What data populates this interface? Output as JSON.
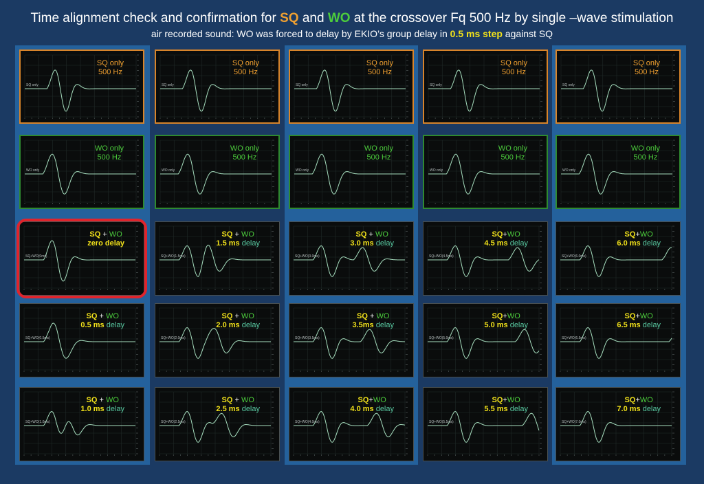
{
  "title": {
    "t1": "Time alignment check and confirmation for ",
    "sq": "SQ",
    "t2": " and ",
    "wo": "WO",
    "t3": " at the crossover Fq 500 Hz by single –wave stimulation"
  },
  "subtitle": {
    "t1": "air recorded sound: WO was forced to delay by EKIO’s group delay in ",
    "step": "0.5 ms step",
    "t2": " against SQ"
  },
  "colors": {
    "sq": "#f0a030",
    "wo": "#4ccc3c",
    "highlight": "#e0242c",
    "waveform": "#a8e0c0"
  },
  "chart_data": {
    "type": "line",
    "crossover_hz": 500,
    "delay_step_ms": 0.5,
    "panels": [
      {
        "kind": "sq",
        "col": 0,
        "row": 0,
        "l1": "SQ only",
        "l2": "500 Hz",
        "trace": "SQ only",
        "delay_ms": 0
      },
      {
        "kind": "sq",
        "col": 1,
        "row": 0,
        "l1": "SQ only",
        "l2": "500 Hz",
        "trace": "SQ only",
        "delay_ms": 0
      },
      {
        "kind": "sq",
        "col": 2,
        "row": 0,
        "l1": "SQ only",
        "l2": "500 Hz",
        "trace": "SQ only",
        "delay_ms": 0
      },
      {
        "kind": "sq",
        "col": 3,
        "row": 0,
        "l1": "SQ only",
        "l2": "500 Hz",
        "trace": "SQ only",
        "delay_ms": 0
      },
      {
        "kind": "sq",
        "col": 4,
        "row": 0,
        "l1": "SQ only",
        "l2": "500 Hz",
        "trace": "SQ only",
        "delay_ms": 0
      },
      {
        "kind": "wo",
        "col": 0,
        "row": 1,
        "l1": "WO only",
        "l2": "500 Hz",
        "trace": "WO only",
        "delay_ms": 0
      },
      {
        "kind": "wo",
        "col": 1,
        "row": 1,
        "l1": "WO only",
        "l2": "500 Hz",
        "trace": "WO only",
        "delay_ms": 0
      },
      {
        "kind": "wo",
        "col": 2,
        "row": 1,
        "l1": "WO only",
        "l2": "500 Hz",
        "trace": "WO only",
        "delay_ms": 0
      },
      {
        "kind": "wo",
        "col": 3,
        "row": 1,
        "l1": "WO only",
        "l2": "500 Hz",
        "trace": "WO only",
        "delay_ms": 0
      },
      {
        "kind": "wo",
        "col": 4,
        "row": 1,
        "l1": "WO only",
        "l2": "500 Hz",
        "trace": "WO only",
        "delay_ms": 0
      },
      {
        "kind": "sum",
        "col": 0,
        "row": 2,
        "sq": "SQ",
        "plus": " + ",
        "wo": "WO",
        "num": "zero delay",
        "word": "",
        "trace": "SQ+WO(0ms)",
        "delay_ms": 0,
        "highlight": true
      },
      {
        "kind": "sum",
        "col": 1,
        "row": 2,
        "sq": "SQ",
        "plus": " + ",
        "wo": "WO",
        "num": "1.5 ms",
        "word": " delay",
        "trace": "SQ+WO(1.5ms)",
        "delay_ms": 1.5
      },
      {
        "kind": "sum",
        "col": 2,
        "row": 2,
        "sq": "SQ",
        "plus": " + ",
        "wo": "WO",
        "num": "3.0 ms",
        "word": " delay",
        "trace": "SQ+WO(3.0ms)",
        "delay_ms": 3.0
      },
      {
        "kind": "sum",
        "col": 3,
        "row": 2,
        "sq": "SQ",
        "plus": "+",
        "wo": "WO",
        "num": "4.5 ms",
        "word": " delay",
        "trace": "SQ+WO(4.5ms)",
        "delay_ms": 4.5
      },
      {
        "kind": "sum",
        "col": 4,
        "row": 2,
        "sq": "SQ",
        "plus": "+",
        "wo": "WO",
        "num": "6.0 ms",
        "word": " delay",
        "trace": "SQ+WO(6.0ms)",
        "delay_ms": 6.0
      },
      {
        "kind": "sum",
        "col": 0,
        "row": 3,
        "sq": "SQ",
        "plus": " + ",
        "wo": "WO",
        "num": "0.5 ms",
        "word": " delay",
        "trace": "SQ+WO(0.5ms)",
        "delay_ms": 0.5
      },
      {
        "kind": "sum",
        "col": 1,
        "row": 3,
        "sq": "SQ",
        "plus": " + ",
        "wo": "WO",
        "num": "2.0 ms",
        "word": " delay",
        "trace": "SQ+WO(2.0ms)",
        "delay_ms": 2.0
      },
      {
        "kind": "sum",
        "col": 2,
        "row": 3,
        "sq": "SQ",
        "plus": " + ",
        "wo": "WO",
        "num": "3.5ms",
        "word": " delay",
        "trace": "SQ+WO(3.5ms)",
        "delay_ms": 3.5
      },
      {
        "kind": "sum",
        "col": 3,
        "row": 3,
        "sq": "SQ",
        "plus": "+",
        "wo": "WO",
        "num": "5.0 ms",
        "word": " delay",
        "trace": "SQ+WO(5.0ms)",
        "delay_ms": 5.0
      },
      {
        "kind": "sum",
        "col": 4,
        "row": 3,
        "sq": "SQ",
        "plus": "+",
        "wo": "WO",
        "num": "6.5 ms",
        "word": " delay",
        "trace": "SQ+WO(6.5ms)",
        "delay_ms": 6.5
      },
      {
        "kind": "sum",
        "col": 0,
        "row": 4,
        "sq": "SQ",
        "plus": " + ",
        "wo": "WO",
        "num": "1.0 ms",
        "word": " delay",
        "trace": "SQ+WO(1.0ms)",
        "delay_ms": 1.0
      },
      {
        "kind": "sum",
        "col": 1,
        "row": 4,
        "sq": "SQ",
        "plus": " + ",
        "wo": "WO",
        "num": "2.5 ms",
        "word": " delay",
        "trace": "SQ+WO(2.5ms)",
        "delay_ms": 2.5
      },
      {
        "kind": "sum",
        "col": 2,
        "row": 4,
        "sq": "SQ",
        "plus": "+",
        "wo": "WO",
        "num": "4.0 ms",
        "word": " delay",
        "trace": "SQ+WO(4.0ms)",
        "delay_ms": 4.0
      },
      {
        "kind": "sum",
        "col": 3,
        "row": 4,
        "sq": "SQ",
        "plus": "+",
        "wo": "WO",
        "num": "5.5 ms",
        "word": " delay",
        "trace": "SQ+WO(5.5ms)",
        "delay_ms": 5.5
      },
      {
        "kind": "sum",
        "col": 4,
        "row": 4,
        "sq": "SQ",
        "plus": "+",
        "wo": "WO",
        "num": "7.0 ms",
        "word": " delay",
        "trace": "SQ+WO(7.0ms)",
        "delay_ms": 7.0
      }
    ]
  }
}
